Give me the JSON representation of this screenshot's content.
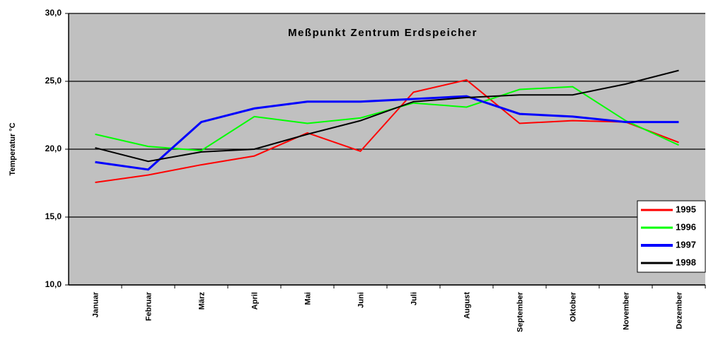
{
  "chart_data": {
    "type": "line",
    "title": "Meßpunkt Zentrum Erdspeicher",
    "y_label": "Temperatur °C",
    "categories": [
      "Januar",
      "Februar",
      "März",
      "April",
      "Mai",
      "Juni",
      "Juli",
      "August",
      "September",
      "Oktober",
      "November",
      "Dezember"
    ],
    "series": [
      {
        "name": "1995",
        "color": "#ff0000",
        "values": [
          17.55,
          18.1,
          18.85,
          19.5,
          21.2,
          19.85,
          24.2,
          25.1,
          21.9,
          22.1,
          22.0,
          20.5
        ]
      },
      {
        "name": "1996",
        "color": "#00ff00",
        "values": [
          21.1,
          20.2,
          19.9,
          22.4,
          21.9,
          22.3,
          23.4,
          23.1,
          24.4,
          24.6,
          22.1,
          20.3
        ]
      },
      {
        "name": "1997",
        "color": "#0000ff",
        "values": [
          19.05,
          18.5,
          22.0,
          23.0,
          23.5,
          23.5,
          23.7,
          23.9,
          22.6,
          22.4,
          22.0,
          22.0
        ]
      },
      {
        "name": "1998",
        "color": "#000000",
        "values": [
          20.1,
          19.1,
          19.8,
          20.0,
          21.1,
          22.1,
          23.5,
          23.8,
          24.0,
          24.0,
          24.8,
          25.8
        ]
      }
    ],
    "ylim": [
      10,
      30
    ],
    "yticks": [
      {
        "value": 10,
        "label": "10,0"
      },
      {
        "value": 15,
        "label": "15,0"
      },
      {
        "value": 20,
        "label": "20,0"
      },
      {
        "value": 25,
        "label": "25,0"
      },
      {
        "value": 30,
        "label": "30,0"
      }
    ],
    "grid": true,
    "legend": "lower right"
  }
}
